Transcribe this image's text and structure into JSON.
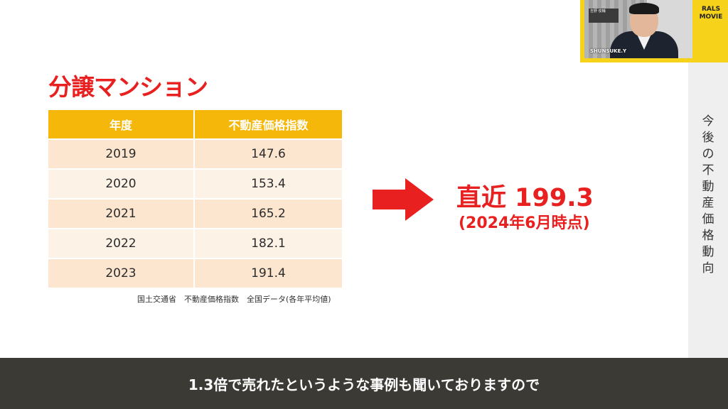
{
  "slide": {
    "title": "分譲マンション",
    "table": {
      "headers": [
        "年度",
        "不動産価格指数"
      ],
      "rows": [
        {
          "year": "2019",
          "value": "147.6"
        },
        {
          "year": "2020",
          "value": "153.4"
        },
        {
          "year": "2021",
          "value": "165.2"
        },
        {
          "year": "2022",
          "value": "182.1"
        },
        {
          "year": "2023",
          "value": "191.4"
        }
      ]
    },
    "source": "国土交通省　不動産価格指数　全国データ(各年平均値)",
    "latest_value": "直近 199.3",
    "latest_date": "(2024年6月時点)",
    "arrow_icon": "right-arrow-icon"
  },
  "side_panel": {
    "vertical_text": [
      "今",
      "後",
      "の",
      "不",
      "動",
      "産",
      "価",
      "格",
      "動",
      "向"
    ]
  },
  "camera": {
    "speaker_label": "SHUNSUKE.Y",
    "nameplate": "吉野 俊輔",
    "brand_line1": "RALS",
    "brand_line2": "MOVIE"
  },
  "subtitle": "1.3倍で売れたというような事例も聞いておりますので",
  "colors": {
    "accent_red": "#e8201f",
    "header_yellow": "#f5b80a",
    "brand_yellow": "#f6d21a",
    "subtitle_bg": "#3c3a35"
  }
}
